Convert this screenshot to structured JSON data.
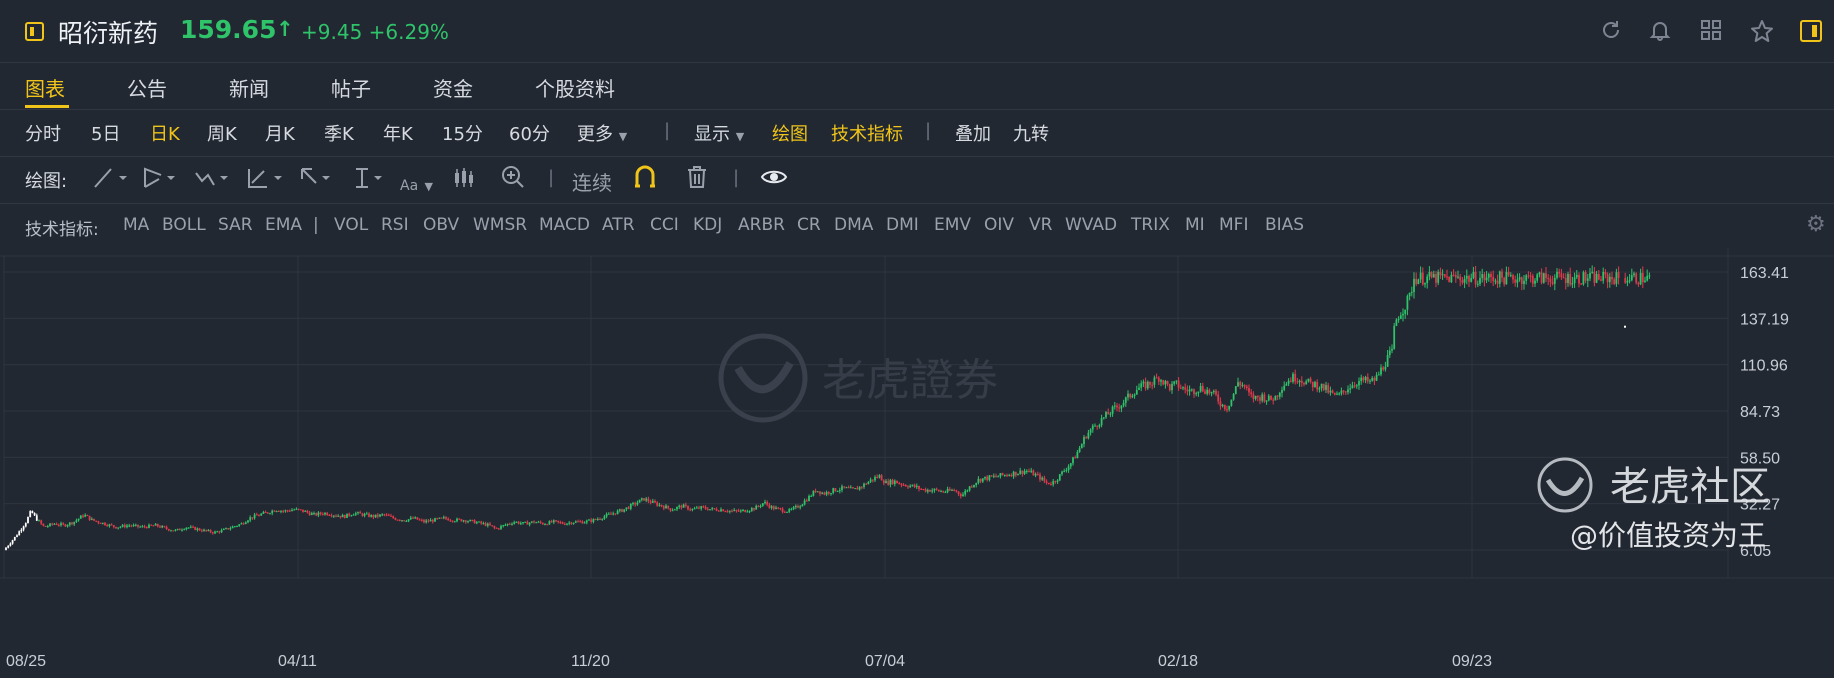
{
  "header": {
    "stock_name": "昭衍新药",
    "price": "159.65",
    "price_arrow": "↑",
    "change": "+9.45 +6.29%",
    "icons": [
      "refresh-icon",
      "bell-icon",
      "grid-icon",
      "star-icon",
      "sidebar-toggle-icon"
    ]
  },
  "tabs": [
    {
      "label": "图表",
      "active": true
    },
    {
      "label": "公告"
    },
    {
      "label": "新闻"
    },
    {
      "label": "帖子"
    },
    {
      "label": "资金"
    },
    {
      "label": "个股资料"
    }
  ],
  "period": {
    "items": [
      "分时",
      "5日",
      "日K",
      "周K",
      "月K",
      "季K",
      "年K",
      "15分",
      "60分"
    ],
    "active": "日K",
    "more": "更多",
    "display": "显示",
    "draw": "绘图",
    "indicators": "技术指标",
    "overlay": "叠加",
    "nine_turn": "九转"
  },
  "drawing": {
    "label": "绘图:",
    "text_tool": "Aa",
    "continuous": "连续"
  },
  "indicator_bar": {
    "label": "技术指标:",
    "main": [
      "MA",
      "BOLL",
      "SAR",
      "EMA"
    ],
    "divider": "|",
    "sub": [
      "VOL",
      "RSI",
      "OBV",
      "WMSR",
      "MACD",
      "ATR",
      "CCI",
      "KDJ",
      "ARBR",
      "CR",
      "DMA",
      "DMI",
      "EMV",
      "OIV",
      "VR",
      "WVAD",
      "TRIX",
      "MI",
      "MFI",
      "BIAS"
    ]
  },
  "chart_data": {
    "type": "candlestick",
    "y_ticks": [
      "163.41",
      "137.19",
      "110.96",
      "84.73",
      "58.50",
      "32.27",
      "6.05"
    ],
    "x_ticks": [
      "08/25",
      "04/11",
      "11/20",
      "07/04",
      "02/18",
      "09/23"
    ],
    "ylim": [
      6.05,
      163.41
    ],
    "series_path": [
      [
        0,
        6
      ],
      [
        12,
        14
      ],
      [
        22,
        22
      ],
      [
        27,
        28
      ],
      [
        32,
        24
      ],
      [
        40,
        19
      ],
      [
        50,
        21
      ],
      [
        60,
        20
      ],
      [
        70,
        22
      ],
      [
        80,
        26
      ],
      [
        88,
        23
      ],
      [
        100,
        21
      ],
      [
        112,
        19
      ],
      [
        125,
        20
      ],
      [
        138,
        19
      ],
      [
        152,
        20
      ],
      [
        163,
        18
      ],
      [
        172,
        17
      ],
      [
        182,
        19
      ],
      [
        192,
        18
      ],
      [
        200,
        17
      ],
      [
        210,
        16
      ],
      [
        218,
        17
      ],
      [
        228,
        19
      ],
      [
        238,
        21
      ],
      [
        245,
        24
      ],
      [
        255,
        26
      ],
      [
        262,
        27
      ],
      [
        272,
        29
      ],
      [
        280,
        28
      ],
      [
        290,
        29
      ],
      [
        300,
        28
      ],
      [
        310,
        26
      ],
      [
        320,
        27
      ],
      [
        330,
        26
      ],
      [
        340,
        25
      ],
      [
        350,
        27
      ],
      [
        360,
        26
      ],
      [
        370,
        25
      ],
      [
        380,
        26
      ],
      [
        390,
        24
      ],
      [
        400,
        23
      ],
      [
        410,
        24
      ],
      [
        420,
        22
      ],
      [
        430,
        23
      ],
      [
        440,
        24
      ],
      [
        450,
        23
      ],
      [
        460,
        23
      ],
      [
        470,
        22
      ],
      [
        478,
        21
      ],
      [
        485,
        20
      ],
      [
        492,
        18
      ],
      [
        500,
        20
      ],
      [
        510,
        22
      ],
      [
        520,
        21
      ],
      [
        530,
        22
      ],
      [
        540,
        21
      ],
      [
        550,
        22
      ],
      [
        560,
        21
      ],
      [
        570,
        22
      ],
      [
        580,
        22
      ],
      [
        590,
        23
      ],
      [
        600,
        25
      ],
      [
        610,
        27
      ],
      [
        620,
        29
      ],
      [
        630,
        32
      ],
      [
        640,
        35
      ],
      [
        648,
        33
      ],
      [
        658,
        31
      ],
      [
        668,
        29
      ],
      [
        678,
        31
      ],
      [
        688,
        29
      ],
      [
        698,
        30
      ],
      [
        708,
        29
      ],
      [
        718,
        29
      ],
      [
        728,
        28
      ],
      [
        738,
        28
      ],
      [
        745,
        29
      ],
      [
        752,
        30
      ],
      [
        760,
        33
      ],
      [
        768,
        30
      ],
      [
        775,
        29
      ],
      [
        785,
        28
      ],
      [
        795,
        31
      ],
      [
        805,
        36
      ],
      [
        812,
        40
      ],
      [
        820,
        38
      ],
      [
        830,
        40
      ],
      [
        840,
        41
      ],
      [
        850,
        40
      ],
      [
        860,
        43
      ],
      [
        868,
        46
      ],
      [
        875,
        48
      ],
      [
        882,
        44
      ],
      [
        890,
        45
      ],
      [
        900,
        43
      ],
      [
        910,
        42
      ],
      [
        920,
        40
      ],
      [
        930,
        40
      ],
      [
        940,
        39
      ],
      [
        950,
        40
      ],
      [
        958,
        37
      ],
      [
        966,
        42
      ],
      [
        975,
        46
      ],
      [
        985,
        47
      ],
      [
        995,
        48
      ],
      [
        1005,
        49
      ],
      [
        1015,
        50
      ],
      [
        1022,
        51
      ],
      [
        1030,
        49
      ],
      [
        1036,
        47
      ],
      [
        1042,
        44
      ],
      [
        1048,
        44
      ],
      [
        1054,
        47
      ],
      [
        1060,
        51
      ],
      [
        1068,
        56
      ],
      [
        1075,
        63
      ],
      [
        1082,
        71
      ],
      [
        1090,
        76
      ],
      [
        1098,
        80
      ],
      [
        1108,
        85
      ],
      [
        1118,
        89
      ],
      [
        1125,
        93
      ],
      [
        1132,
        97
      ],
      [
        1140,
        99
      ],
      [
        1148,
        101
      ],
      [
        1155,
        104
      ],
      [
        1160,
        101
      ],
      [
        1166,
        98
      ],
      [
        1172,
        100
      ],
      [
        1180,
        97
      ],
      [
        1188,
        96
      ],
      [
        1196,
        98
      ],
      [
        1204,
        96
      ],
      [
        1212,
        93
      ],
      [
        1218,
        88
      ],
      [
        1223,
        87
      ],
      [
        1228,
        92
      ],
      [
        1234,
        101
      ],
      [
        1240,
        99
      ],
      [
        1246,
        93
      ],
      [
        1252,
        92
      ],
      [
        1258,
        93
      ],
      [
        1266,
        91
      ],
      [
        1272,
        93
      ],
      [
        1278,
        99
      ],
      [
        1284,
        102
      ],
      [
        1290,
        104
      ],
      [
        1296,
        103
      ],
      [
        1302,
        101
      ],
      [
        1308,
        100
      ],
      [
        1316,
        99
      ],
      [
        1322,
        97
      ],
      [
        1328,
        94
      ],
      [
        1334,
        93
      ],
      [
        1340,
        96
      ],
      [
        1346,
        99
      ],
      [
        1352,
        101
      ],
      [
        1360,
        102
      ],
      [
        1366,
        101
      ],
      [
        1372,
        103
      ],
      [
        1376,
        107
      ],
      [
        1380,
        111
      ],
      [
        1384,
        115
      ],
      [
        1388,
        118
      ],
      [
        1390,
        130
      ],
      [
        1393,
        138
      ],
      [
        1398,
        142
      ],
      [
        1402,
        145
      ],
      [
        1406,
        150
      ],
      [
        1410,
        160
      ]
    ]
  },
  "watermark": {
    "center": "老虎證券",
    "corner": "老虎社区",
    "user": "@价值投资为王"
  },
  "colors": {
    "background": "#222831",
    "accent": "#f0c419",
    "up": "#2fc36a",
    "down": "#e03a4a",
    "grid": "#2e3540"
  }
}
